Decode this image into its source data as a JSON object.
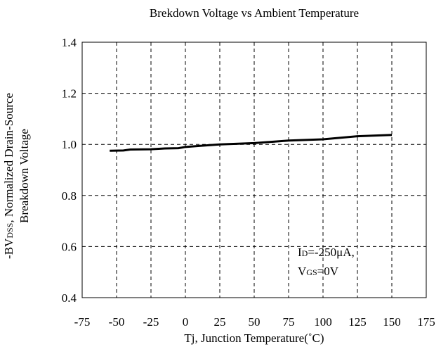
{
  "chart_data": {
    "type": "line",
    "title": "Brekdown Voltage vs Ambient Temperature",
    "x_label": "Tj, Junction Temperature(˚C)",
    "y_label": [
      [
        "-BV",
        "DSS",
        ", Normalized Drain-Source"
      ],
      [
        "Breakdown Voltage"
      ]
    ],
    "annotation": [
      [
        "I",
        "D",
        "=-250μA,"
      ],
      [
        "V",
        "GS",
        "=0V"
      ]
    ],
    "x": [
      -55,
      -45,
      -40,
      -25,
      -15,
      -5,
      0,
      10,
      25,
      50,
      75,
      100,
      125,
      150
    ],
    "series": [
      {
        "name": "BVDSS",
        "color": "#000000",
        "values": [
          0.975,
          0.976,
          0.98,
          0.981,
          0.984,
          0.985,
          0.99,
          0.994,
          1.0,
          1.005,
          1.015,
          1.02,
          1.032,
          1.037
        ]
      }
    ],
    "xlim": [
      -75,
      175
    ],
    "xticks": [
      -75,
      -50,
      -25,
      0,
      25,
      50,
      75,
      100,
      125,
      150,
      175
    ],
    "ylim": [
      0.4,
      1.4
    ],
    "yticks": [
      0.4,
      0.6,
      0.8,
      {
        "value": 1,
        "label": "1.0"
      },
      1.2,
      1.4
    ],
    "grid": true
  }
}
